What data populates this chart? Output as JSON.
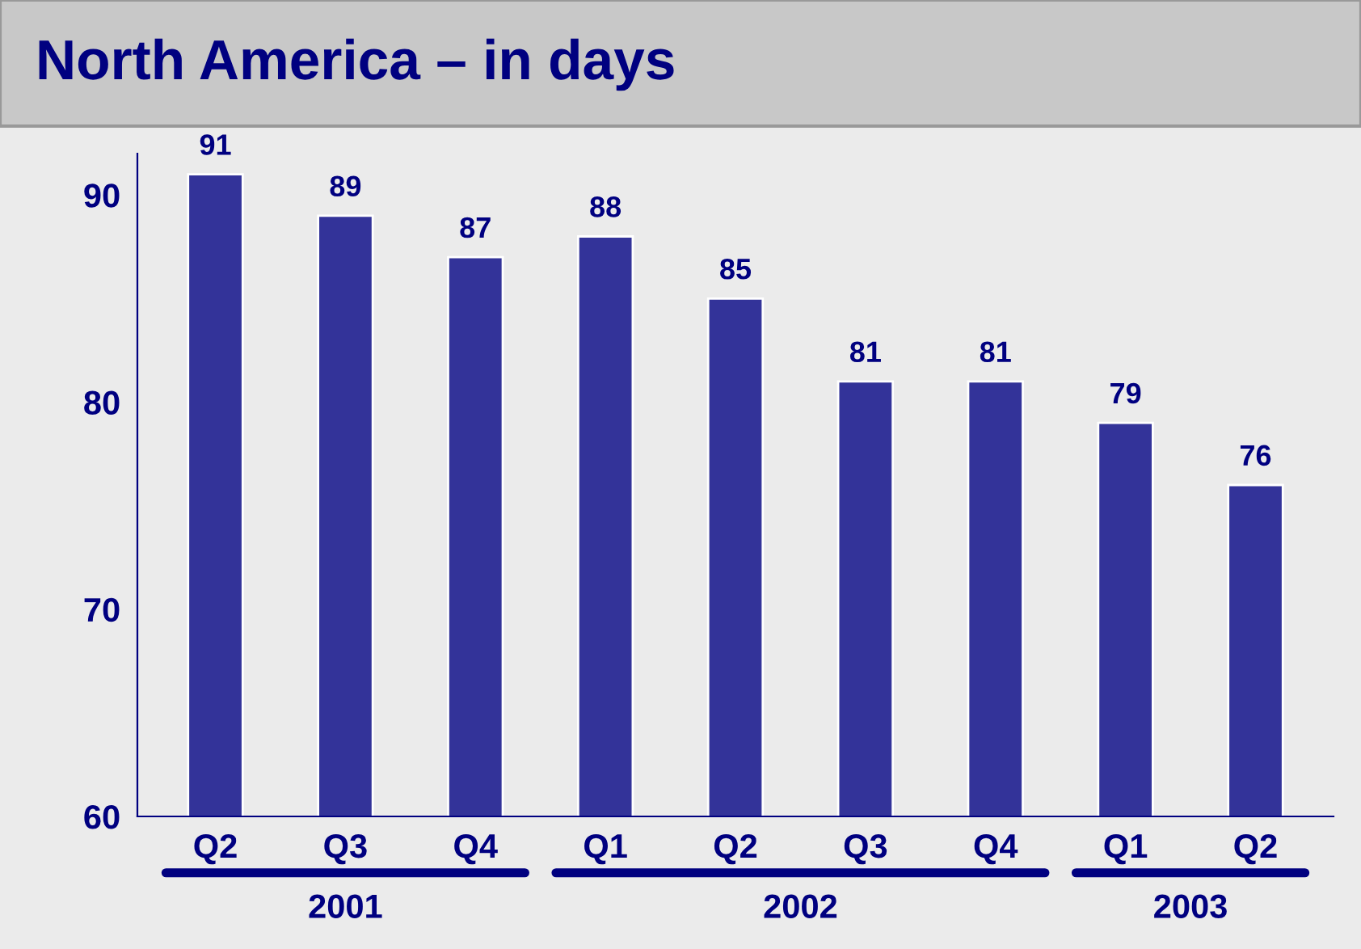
{
  "chart_data": {
    "type": "bar",
    "title": "North America – in days",
    "categories": [
      "Q2",
      "Q3",
      "Q4",
      "Q1",
      "Q2",
      "Q3",
      "Q4",
      "Q1",
      "Q2"
    ],
    "values": [
      91,
      89,
      87,
      88,
      85,
      81,
      81,
      79,
      76
    ],
    "color": "#333399",
    "ylim": [
      60,
      92
    ],
    "yticks": [
      60,
      70,
      80,
      90
    ],
    "grid": false,
    "data_labels": true,
    "annotations": [
      "2001",
      "2002",
      "2003"
    ]
  }
}
